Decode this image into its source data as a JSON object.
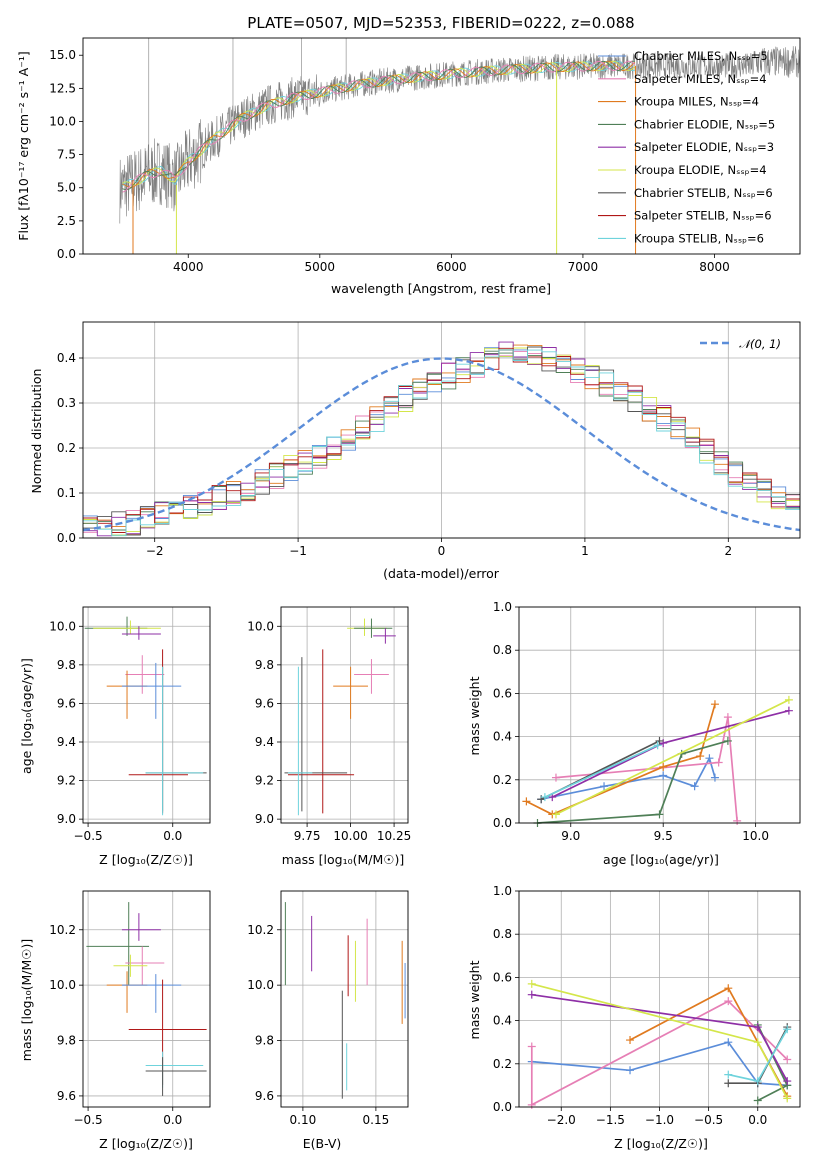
{
  "colors": {
    "chabrier_miles": "#5b8dd9",
    "salpeter_miles": "#e67fb5",
    "kroupa_miles": "#e07a1f",
    "chabrier_elodie": "#4f7f57",
    "salpeter_elodie": "#8e2fa6",
    "kroupa_elodie": "#d4e64a",
    "chabrier_stelib": "#555555",
    "salpeter_stelib": "#b01818",
    "kroupa_stelib": "#6fd3dc",
    "normal_curve": "#5b8dd9",
    "spectrum": "#7f7f7f"
  },
  "spectrum_panel": {
    "title": "PLATE=0507, MJD=52353, FIBERID=0222, z=0.088",
    "ylabel": "Flux [fλ10⁻¹⁷ erg cm⁻² s⁻¹ A⁻¹]",
    "xlabel": "wavelength [Angstrom, rest frame]",
    "xticks": [
      "4000",
      "5000",
      "6000",
      "7000",
      "8000"
    ],
    "yticks": [
      "0.0",
      "2.5",
      "5.0",
      "7.5",
      "10.0",
      "12.5",
      "15.0"
    ],
    "legend": [
      {
        "key": "chabrier_miles",
        "text": "Chabrier MILES, N_SSP=5"
      },
      {
        "key": "salpeter_miles",
        "text": "Salpeter MILES, N_SSP=4"
      },
      {
        "key": "kroupa_miles",
        "text": "Kroupa MILES, N_SSP=4"
      },
      {
        "key": "chabrier_elodie",
        "text": "Chabrier ELODIE, N_SSP=5"
      },
      {
        "key": "salpeter_elodie",
        "text": "Salpeter ELODIE, N_SSP=3"
      },
      {
        "key": "kroupa_elodie",
        "text": "Kroupa ELODIE, N_SSP=4"
      },
      {
        "key": "chabrier_stelib",
        "text": "Chabrier STELIB, N_SSP=6"
      },
      {
        "key": "salpeter_stelib",
        "text": "Salpeter STELIB, N_SSP=6"
      },
      {
        "key": "kroupa_stelib",
        "text": "Kroupa STELIB, N_SSP=6"
      }
    ]
  },
  "hist_panel": {
    "ylabel": "Normed distribution",
    "xlabel": "(data-model)/error",
    "legend": "𝒩(0, 1)",
    "xticks": [
      "−2",
      "−1",
      "0",
      "1",
      "2"
    ],
    "yticks": [
      "0.0",
      "0.1",
      "0.2",
      "0.3",
      "0.4"
    ]
  },
  "panel_labels": {
    "age_axis": "age  [log₁₀(age/yr)]",
    "age_axis_short": "age  [log₁₀(age/yr)]",
    "z_axis": "Z [log₁₀(Z/Z☉)]",
    "mass_axis": "mass [log₁₀(M/M☉)]",
    "ebv_axis": "E(B-V)",
    "mass_weight": "mass weight"
  },
  "chart_data": [
    {
      "type": "line",
      "title": "PLATE=0507, MJD=52353, FIBERID=0222, z=0.088",
      "xlabel": "wavelength [Angstrom, rest frame]",
      "ylabel": "Flux [fλ10⁻¹⁷ erg cm⁻² s⁻¹ A⁻¹]",
      "xlim": [
        3200,
        8650
      ],
      "ylim": [
        0,
        16.3
      ],
      "continuum_x": [
        3480,
        3600,
        3700,
        3800,
        3900,
        4000,
        4200,
        4400,
        4600,
        4800,
        5000,
        5300,
        5600,
        6000,
        6400,
        6800,
        7200,
        7400
      ],
      "continuum_y": [
        4.9,
        5.5,
        6.0,
        6.3,
        5.6,
        7.0,
        8.7,
        10.2,
        11.2,
        11.8,
        12.2,
        12.8,
        13.2,
        13.6,
        13.9,
        14.1,
        14.2,
        14.2
      ]
    },
    {
      "type": "bar",
      "xlabel": "(data-model)/error",
      "ylabel": "Normed distribution",
      "xlim": [
        -2.5,
        2.5
      ],
      "ylim": [
        0,
        0.48
      ],
      "bin_width": 0.1,
      "bin_start": -2.5,
      "values": [
        0.02,
        0.021,
        0.03,
        0.035,
        0.045,
        0.055,
        0.06,
        0.07,
        0.08,
        0.09,
        0.1,
        0.11,
        0.125,
        0.14,
        0.155,
        0.17,
        0.185,
        0.2,
        0.22,
        0.245,
        0.265,
        0.29,
        0.31,
        0.33,
        0.345,
        0.36,
        0.375,
        0.385,
        0.395,
        0.41,
        0.415,
        0.41,
        0.4,
        0.39,
        0.375,
        0.36,
        0.345,
        0.33,
        0.31,
        0.285,
        0.265,
        0.24,
        0.215,
        0.19,
        0.165,
        0.145,
        0.125,
        0.105,
        0.09,
        0.075
      ],
      "curve": "N(0,1)"
    },
    {
      "type": "scatter",
      "xlabel": "Z [log₁₀(Z/Z☉)]",
      "ylabel": "age  [log₁₀(age/yr)]",
      "xlim": [
        -0.53,
        0.22
      ],
      "ylim": [
        8.98,
        10.1
      ],
      "xticks": [
        -0.5,
        0.0
      ],
      "yticks": [
        9.0,
        9.2,
        9.4,
        9.6,
        9.8,
        10.0
      ]
    },
    {
      "type": "scatter",
      "xlabel": "mass [log₁₀(M/M☉)]",
      "xlim": [
        9.6,
        10.33
      ],
      "ylim": [
        8.98,
        10.1
      ],
      "xticks": [
        9.75,
        10.0,
        10.25
      ],
      "yticks": [
        9.0,
        9.2,
        9.4,
        9.6,
        9.8,
        10.0
      ]
    },
    {
      "type": "line",
      "xlabel": "age  [log₁₀(age/yr)]",
      "ylabel": "mass weight",
      "xlim": [
        8.72,
        10.24
      ],
      "ylim": [
        0,
        1.0
      ],
      "xticks": [
        9.0,
        9.5,
        10.0
      ],
      "yticks": [
        0.0,
        0.2,
        0.4,
        0.6,
        0.8,
        1.0
      ],
      "series": [
        {
          "key": "chabrier_miles",
          "x": [
            8.84,
            9.18,
            9.5,
            9.67,
            9.75,
            9.78
          ],
          "y": [
            0.11,
            0.17,
            0.22,
            0.17,
            0.3,
            0.21
          ]
        },
        {
          "key": "salpeter_miles",
          "x": [
            8.92,
            9.8,
            9.85,
            9.9
          ],
          "y": [
            0.21,
            0.28,
            0.49,
            0.01
          ]
        },
        {
          "key": "kroupa_miles",
          "x": [
            8.76,
            8.9,
            9.5,
            9.7,
            9.78
          ],
          "y": [
            0.1,
            0.04,
            0.26,
            0.31,
            0.55
          ]
        },
        {
          "key": "chabrier_elodie",
          "x": [
            8.82,
            9.48,
            9.6,
            9.85
          ],
          "y": [
            0.0,
            0.04,
            0.32,
            0.38
          ]
        },
        {
          "key": "salpeter_elodie",
          "x": [
            8.9,
            9.5,
            10.18
          ],
          "y": [
            0.12,
            0.37,
            0.52
          ]
        },
        {
          "key": "kroupa_elodie",
          "x": [
            8.92,
            10.18
          ],
          "y": [
            0.04,
            0.57
          ]
        },
        {
          "key": "chabrier_stelib",
          "x": [
            8.84,
            9.48
          ],
          "y": [
            0.11,
            0.38
          ]
        },
        {
          "key": "kroupa_stelib",
          "x": [
            8.86,
            9.47
          ],
          "y": [
            0.12,
            0.36
          ]
        }
      ]
    },
    {
      "type": "scatter",
      "xlabel": "Z [log₁₀(Z/Z☉)]",
      "ylabel": "mass [log₁₀(M/M☉)]",
      "xlim": [
        -0.53,
        0.22
      ],
      "ylim": [
        9.56,
        10.34
      ],
      "xticks": [
        -0.5,
        0.0
      ],
      "yticks": [
        9.6,
        9.8,
        10.0,
        10.2
      ]
    },
    {
      "type": "scatter",
      "xlabel": "E(B-V)",
      "xlim": [
        0.085,
        0.172
      ],
      "ylim": [
        9.56,
        10.34
      ],
      "xticks": [
        0.1,
        0.15
      ],
      "yticks": [
        9.6,
        9.8,
        10.0,
        10.2
      ]
    },
    {
      "type": "line",
      "xlabel": "Z [log₁₀(Z/Z☉)]",
      "ylabel": "mass weight",
      "xlim": [
        -2.43,
        0.43
      ],
      "ylim": [
        0,
        1.0
      ],
      "xticks": [
        -2.0,
        -1.5,
        -1.0,
        -0.5,
        0.0
      ],
      "yticks": [
        0.0,
        0.2,
        0.4,
        0.6,
        0.8,
        1.0
      ],
      "series": [
        {
          "key": "chabrier_miles",
          "x": [
            -2.3,
            -1.3,
            -0.3,
            0.0,
            0.3
          ],
          "y": [
            0.21,
            0.17,
            0.3,
            0.11,
            0.1
          ]
        },
        {
          "key": "salpeter_miles",
          "x": [
            -2.3,
            -2.3,
            -0.3,
            0.3
          ],
          "y": [
            0.28,
            0.01,
            0.49,
            0.22
          ]
        },
        {
          "key": "kroupa_miles",
          "x": [
            -1.3,
            -0.3,
            0.3
          ],
          "y": [
            0.31,
            0.55,
            0.05
          ]
        },
        {
          "key": "chabrier_elodie",
          "x": [
            0.0,
            0.3,
            0.0
          ],
          "y": [
            0.38,
            0.1,
            0.03
          ]
        },
        {
          "key": "salpeter_elodie",
          "x": [
            -2.3,
            0.0,
            0.3
          ],
          "y": [
            0.52,
            0.37,
            0.12
          ]
        },
        {
          "key": "kroupa_elodie",
          "x": [
            -2.3,
            0.0,
            0.3
          ],
          "y": [
            0.57,
            0.3,
            0.04
          ]
        },
        {
          "key": "chabrier_stelib",
          "x": [
            -0.3,
            0.0,
            0.3
          ],
          "y": [
            0.11,
            0.11,
            0.37
          ]
        },
        {
          "key": "kroupa_stelib",
          "x": [
            -0.3,
            0.0,
            0.3
          ],
          "y": [
            0.15,
            0.12,
            0.36
          ]
        }
      ]
    }
  ]
}
